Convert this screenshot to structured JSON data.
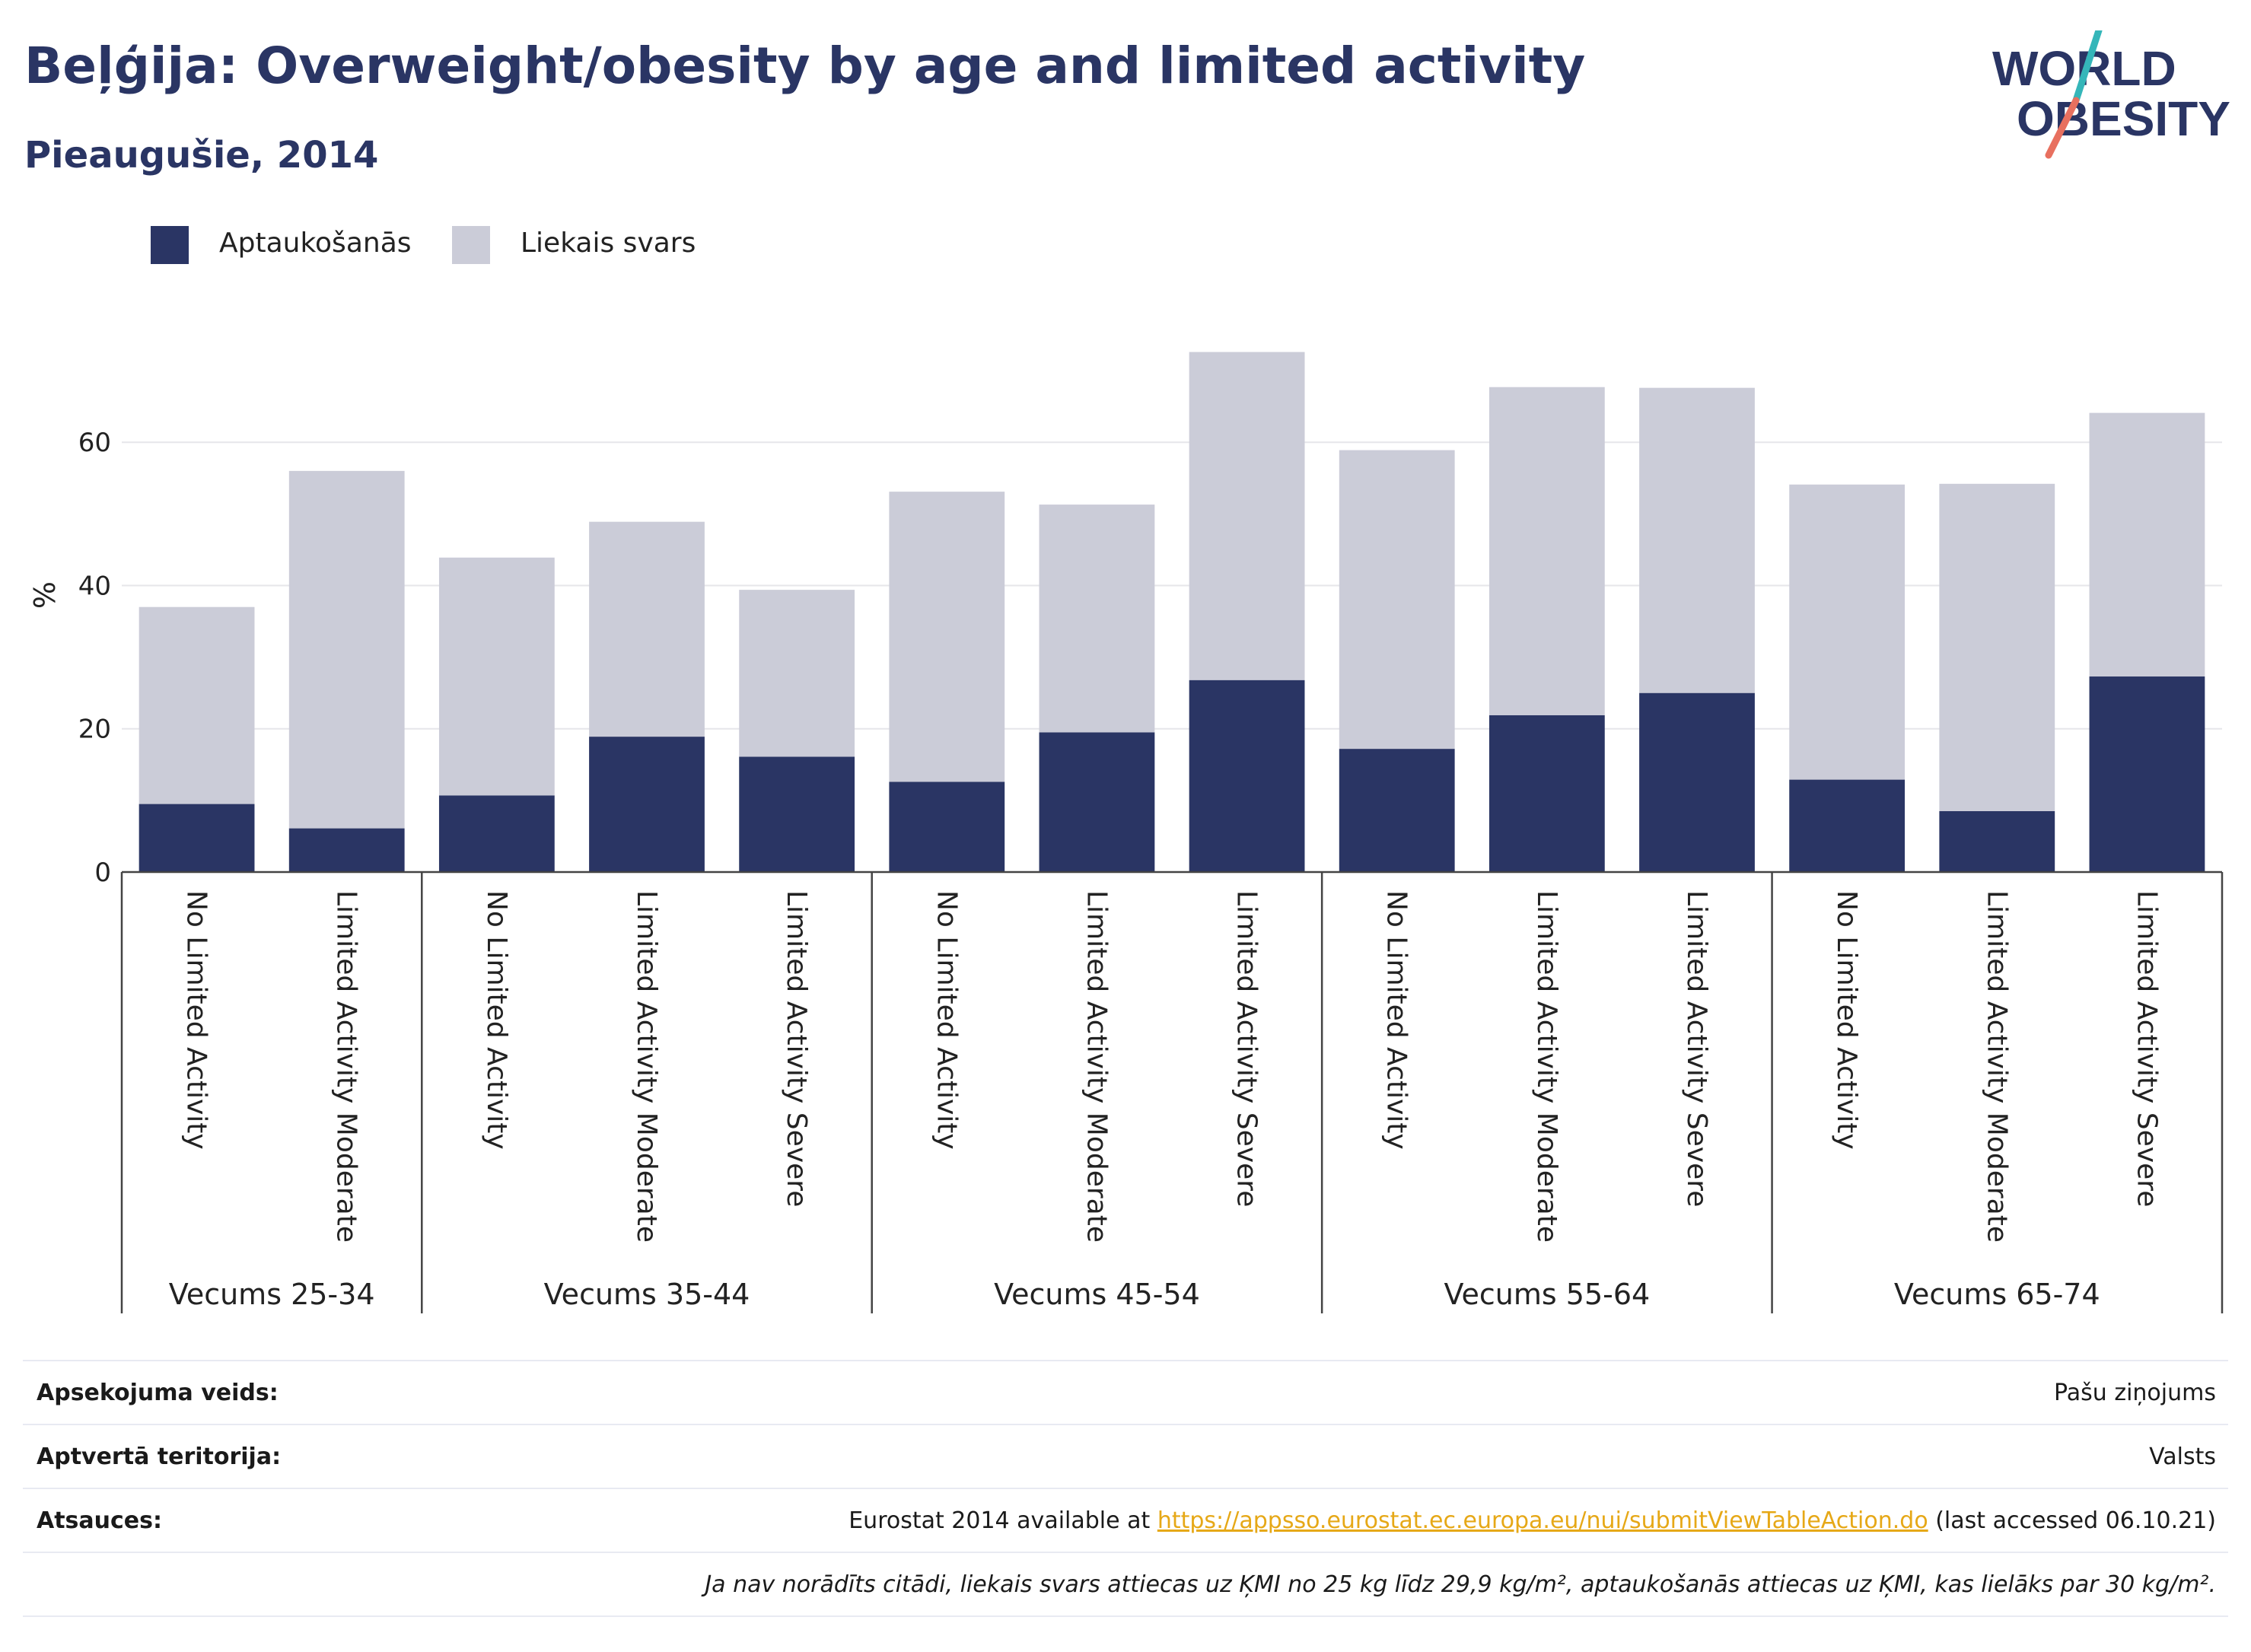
{
  "header": {
    "title": "Beļģija: Overweight/obesity by age and limited activity",
    "subtitle": "Pieaugušie, 2014"
  },
  "logo": {
    "line1": "WORLD",
    "line2": "OBESITY",
    "colors": {
      "text": "#2a3564",
      "slash_teal": "#35b6b9",
      "slash_coral": "#e8705f"
    }
  },
  "legend": {
    "items": [
      {
        "label": "Aptaukošanās",
        "color": "#2a3564"
      },
      {
        "label": "Liekais svars",
        "color": "#cbccd8"
      }
    ]
  },
  "chart_data": {
    "type": "bar",
    "stacked": true,
    "ylabel": "%",
    "ylim": [
      0,
      75
    ],
    "yticks": [
      0,
      20,
      40,
      60
    ],
    "grid": true,
    "legend_position": "top-left",
    "categories": [
      "No Limited Activity",
      "Limited Activity Moderate",
      "No Limited Activity",
      "Limited Activity Moderate",
      "Limited Activity Severe",
      "No Limited Activity",
      "Limited Activity Moderate",
      "Limited Activity Severe",
      "No Limited Activity",
      "Limited Activity Moderate",
      "Limited Activity Severe",
      "No Limited Activity",
      "Limited Activity Moderate",
      "Limited Activity Severe"
    ],
    "groups": [
      {
        "label": "Vecums 25-34",
        "count": 2
      },
      {
        "label": "Vecums 35-44",
        "count": 3
      },
      {
        "label": "Vecums 45-54",
        "count": 3
      },
      {
        "label": "Vecums 55-64",
        "count": 3
      },
      {
        "label": "Vecums 65-74",
        "count": 3
      }
    ],
    "series": [
      {
        "name": "Aptaukošanās",
        "color": "#2a3564",
        "values": [
          9.5,
          6.1,
          10.7,
          18.9,
          16.1,
          12.6,
          19.5,
          26.8,
          17.2,
          21.9,
          25.0,
          12.9,
          8.5,
          27.3
        ]
      },
      {
        "name": "Liekais svars",
        "color": "#cbccd8",
        "values": [
          27.5,
          49.9,
          33.2,
          30.0,
          23.3,
          40.5,
          31.8,
          45.8,
          41.7,
          45.8,
          42.6,
          41.2,
          45.7,
          36.8
        ]
      }
    ],
    "totals": [
      37.0,
      56.0,
      43.9,
      48.9,
      39.4,
      53.1,
      51.3,
      72.6,
      58.9,
      67.7,
      67.6,
      54.1,
      54.2,
      64.1
    ]
  },
  "info": {
    "rows": [
      {
        "label": "Apsekojuma veids:",
        "value": "Pašu ziņojums"
      },
      {
        "label": "Aptvertā teritorija:",
        "value": "Valsts"
      },
      {
        "label": "Atsauces:",
        "value_prefix": "Eurostat 2014 available at ",
        "link": "https://appsso.eurostat.ec.europa.eu/nui/submitViewTableAction.do",
        "value_suffix": " (last accessed 06.10.21)"
      },
      {
        "label": "",
        "value": "Ja nav norādīts citādi, liekais svars attiecas uz ĶMI no 25 kg līdz 29,9 kg/m², aptaukošanās attiecas uz ĶMI, kas lielāks par 30 kg/m²."
      }
    ]
  }
}
